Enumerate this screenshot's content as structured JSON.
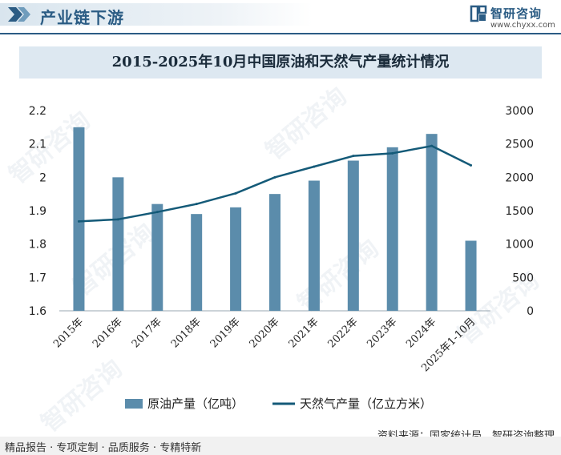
{
  "header": {
    "section_title": "产业链下游",
    "logo_text": "智研咨询",
    "logo_url": "www.chyxx.com"
  },
  "watermark": {
    "brand": "智研咨询"
  },
  "footer": {
    "left_text": "精品报告 · 专项定制 · 品质服务 · 专精特新",
    "source_text": "资料来源：国家统计局、智研咨询整理"
  },
  "colors": {
    "bar": "#5b8cab",
    "line": "#145a78",
    "accent": "#2b5c84"
  },
  "chart_data": {
    "type": "bar+line",
    "title": "2015-2025年10月中国原油和天然气产量统计情况",
    "categories": [
      "2015年",
      "2016年",
      "2017年",
      "2018年",
      "2019年",
      "2020年",
      "2021年",
      "2022年",
      "2023年",
      "2024年",
      "2025年1-10月"
    ],
    "series": [
      {
        "name": "原油产量（亿吨）",
        "type": "bar",
        "axis": "left",
        "values": [
          2.15,
          2.0,
          1.92,
          1.89,
          1.91,
          1.95,
          1.99,
          2.05,
          2.09,
          2.13,
          1.81
        ]
      },
      {
        "name": "天然气产量（亿立方米）",
        "type": "line",
        "axis": "right",
        "values": [
          1340,
          1370,
          1480,
          1600,
          1760,
          2000,
          2160,
          2320,
          2360,
          2470,
          2180
        ]
      }
    ],
    "left_axis": {
      "ylim": [
        1.6,
        2.2
      ],
      "ticks": [
        "1.6",
        "1.7",
        "1.8",
        "1.9",
        "2",
        "2.1",
        "2.2"
      ],
      "tick_values": [
        1.6,
        1.7,
        1.8,
        1.9,
        2.0,
        2.1,
        2.2
      ]
    },
    "right_axis": {
      "ylim": [
        0,
        3000
      ],
      "ticks": [
        "0",
        "500",
        "1000",
        "1500",
        "2000",
        "2500",
        "3000"
      ],
      "tick_values": [
        0,
        500,
        1000,
        1500,
        2000,
        2500,
        3000
      ]
    },
    "legend": {
      "placement": "bottom"
    },
    "grid": false
  }
}
